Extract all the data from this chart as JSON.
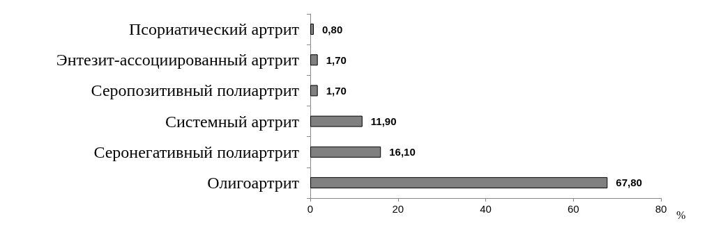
{
  "chart_data": {
    "type": "bar",
    "orientation": "horizontal",
    "categories": [
      "Псориатический артрит",
      "Энтезит-ассоциированный артрит",
      "Серопозитивный полиартрит",
      "Системный артрит",
      "Серонегативный полиартрит",
      "Олигоартрит"
    ],
    "values": [
      0.8,
      1.7,
      1.7,
      11.9,
      16.1,
      67.8
    ],
    "value_labels": [
      "0,80",
      "1,70",
      "1,70",
      "11,90",
      "16,10",
      "67,80"
    ],
    "color": "#808080",
    "xlabel": "%",
    "xlim": [
      0,
      80
    ],
    "xticks": [
      0,
      20,
      40,
      60,
      80
    ]
  }
}
